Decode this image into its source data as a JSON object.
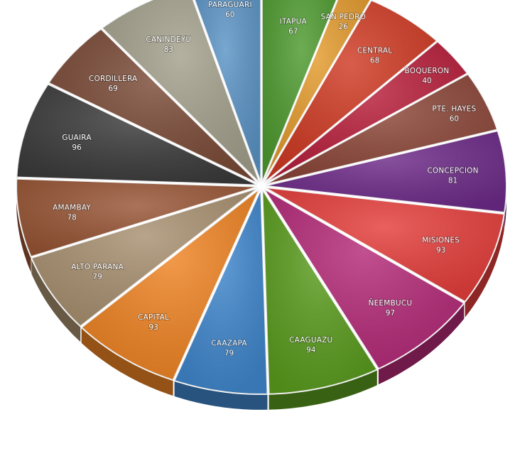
{
  "chart_data": {
    "type": "pie",
    "title": "",
    "legend": "none",
    "slices": [
      {
        "label": "ITAPUA",
        "value": 67,
        "color": "#4e9a2f"
      },
      {
        "label": "SAN PEDRO",
        "value": 26,
        "color": "#e39a2c"
      },
      {
        "label": "CENTRAL",
        "value": 68,
        "color": "#cf3a23"
      },
      {
        "label": "BOQUERON",
        "value": 40,
        "color": "#b81f3b"
      },
      {
        "label": "PTE. HAYES",
        "value": 60,
        "color": "#8c4638"
      },
      {
        "label": "CONCEPCION",
        "value": 81,
        "color": "#6d2a88"
      },
      {
        "label": "MISIONES",
        "value": 93,
        "color": "#e43d3a"
      },
      {
        "label": "ÑEEMBUCU",
        "value": 97,
        "color": "#b42a78"
      },
      {
        "label": "CAAGUAZU",
        "value": 94,
        "color": "#5a9c1e"
      },
      {
        "label": "CAAZAPA",
        "value": 79,
        "color": "#3f86cc"
      },
      {
        "label": "CAPITAL",
        "value": 93,
        "color": "#ef8424"
      },
      {
        "label": "ALTO PARANA",
        "value": 79,
        "color": "#a89070"
      },
      {
        "label": "AMAMBAY",
        "value": 78,
        "color": "#985535"
      },
      {
        "label": "GUAIRA",
        "value": 96,
        "color": "#3b3b3b"
      },
      {
        "label": "CORDILLERA",
        "value": 69,
        "color": "#7a4a36"
      },
      {
        "label": "CANINDEYU",
        "value": 83,
        "color": "#a3a08c"
      },
      {
        "label": "PARAGUARI",
        "value": 60,
        "color": "#5a93c5"
      }
    ]
  }
}
